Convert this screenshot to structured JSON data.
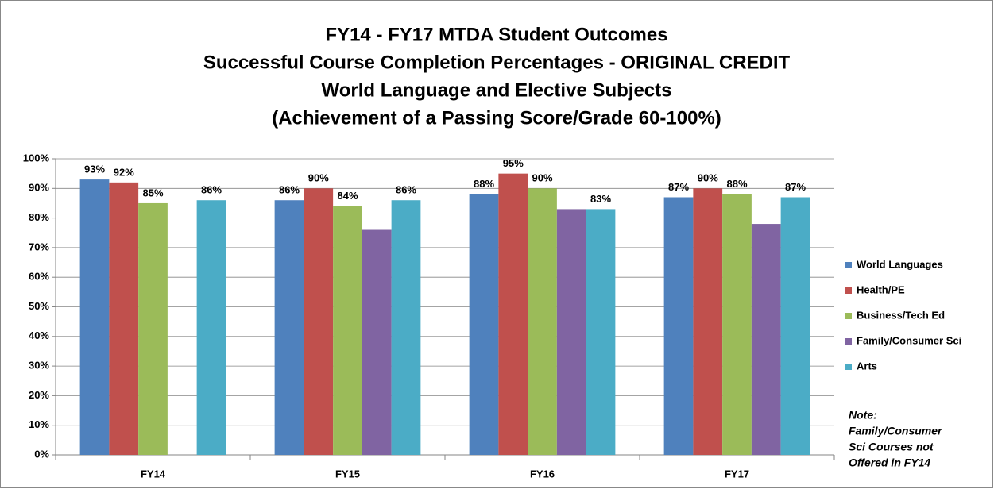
{
  "chart_data": {
    "type": "bar",
    "title": [
      "FY14 - FY17 MTDA Student Outcomes",
      "Successful Course Completion Percentages - ORIGINAL CREDIT",
      "World Language and Elective Subjects",
      "(Achievement of a Passing Score/Grade 60-100%)"
    ],
    "categories": [
      "FY14",
      "FY15",
      "FY16",
      "FY17"
    ],
    "series": [
      {
        "name": "World Languages",
        "color": "#4f81bd",
        "values": [
          93,
          86,
          88,
          87
        ],
        "value_labels": [
          "93%",
          "86%",
          "88%",
          "87%"
        ]
      },
      {
        "name": "Health/PE",
        "color": "#c0504d",
        "values": [
          92,
          90,
          95,
          90
        ],
        "value_labels": [
          "92%",
          "90%",
          "95%",
          "90%"
        ]
      },
      {
        "name": "Business/Tech Ed",
        "color": "#9bbb59",
        "values": [
          85,
          84,
          90,
          88
        ],
        "value_labels": [
          "85%",
          "84%",
          "90%",
          "88%"
        ]
      },
      {
        "name": "Family/Consumer Sci",
        "color": "#8064a2",
        "values": [
          null,
          76,
          83,
          78
        ]
      },
      {
        "name": "Arts",
        "color": "#4bacc6",
        "values": [
          86,
          86,
          83,
          87
        ],
        "value_labels": [
          "86%",
          "86%",
          "83%",
          "87%"
        ]
      }
    ],
    "ylim": [
      0,
      100
    ],
    "yticks": [
      {
        "value": 0,
        "label": "0%"
      },
      {
        "value": 10,
        "label": "10%"
      },
      {
        "value": 20,
        "label": "20%"
      },
      {
        "value": 30,
        "label": "30%"
      },
      {
        "value": 40,
        "label": "40%"
      },
      {
        "value": 50,
        "label": "50%"
      },
      {
        "value": 60,
        "label": "60%"
      },
      {
        "value": 70,
        "label": "70%"
      },
      {
        "value": 80,
        "label": "80%"
      },
      {
        "value": 90,
        "label": "90%"
      },
      {
        "value": 100,
        "label": "100%"
      }
    ],
    "grid": true,
    "legend": "right",
    "annotation": [
      "Note:",
      "Family/Consumer",
      "Sci Courses not",
      "Offered in  FY14"
    ]
  }
}
